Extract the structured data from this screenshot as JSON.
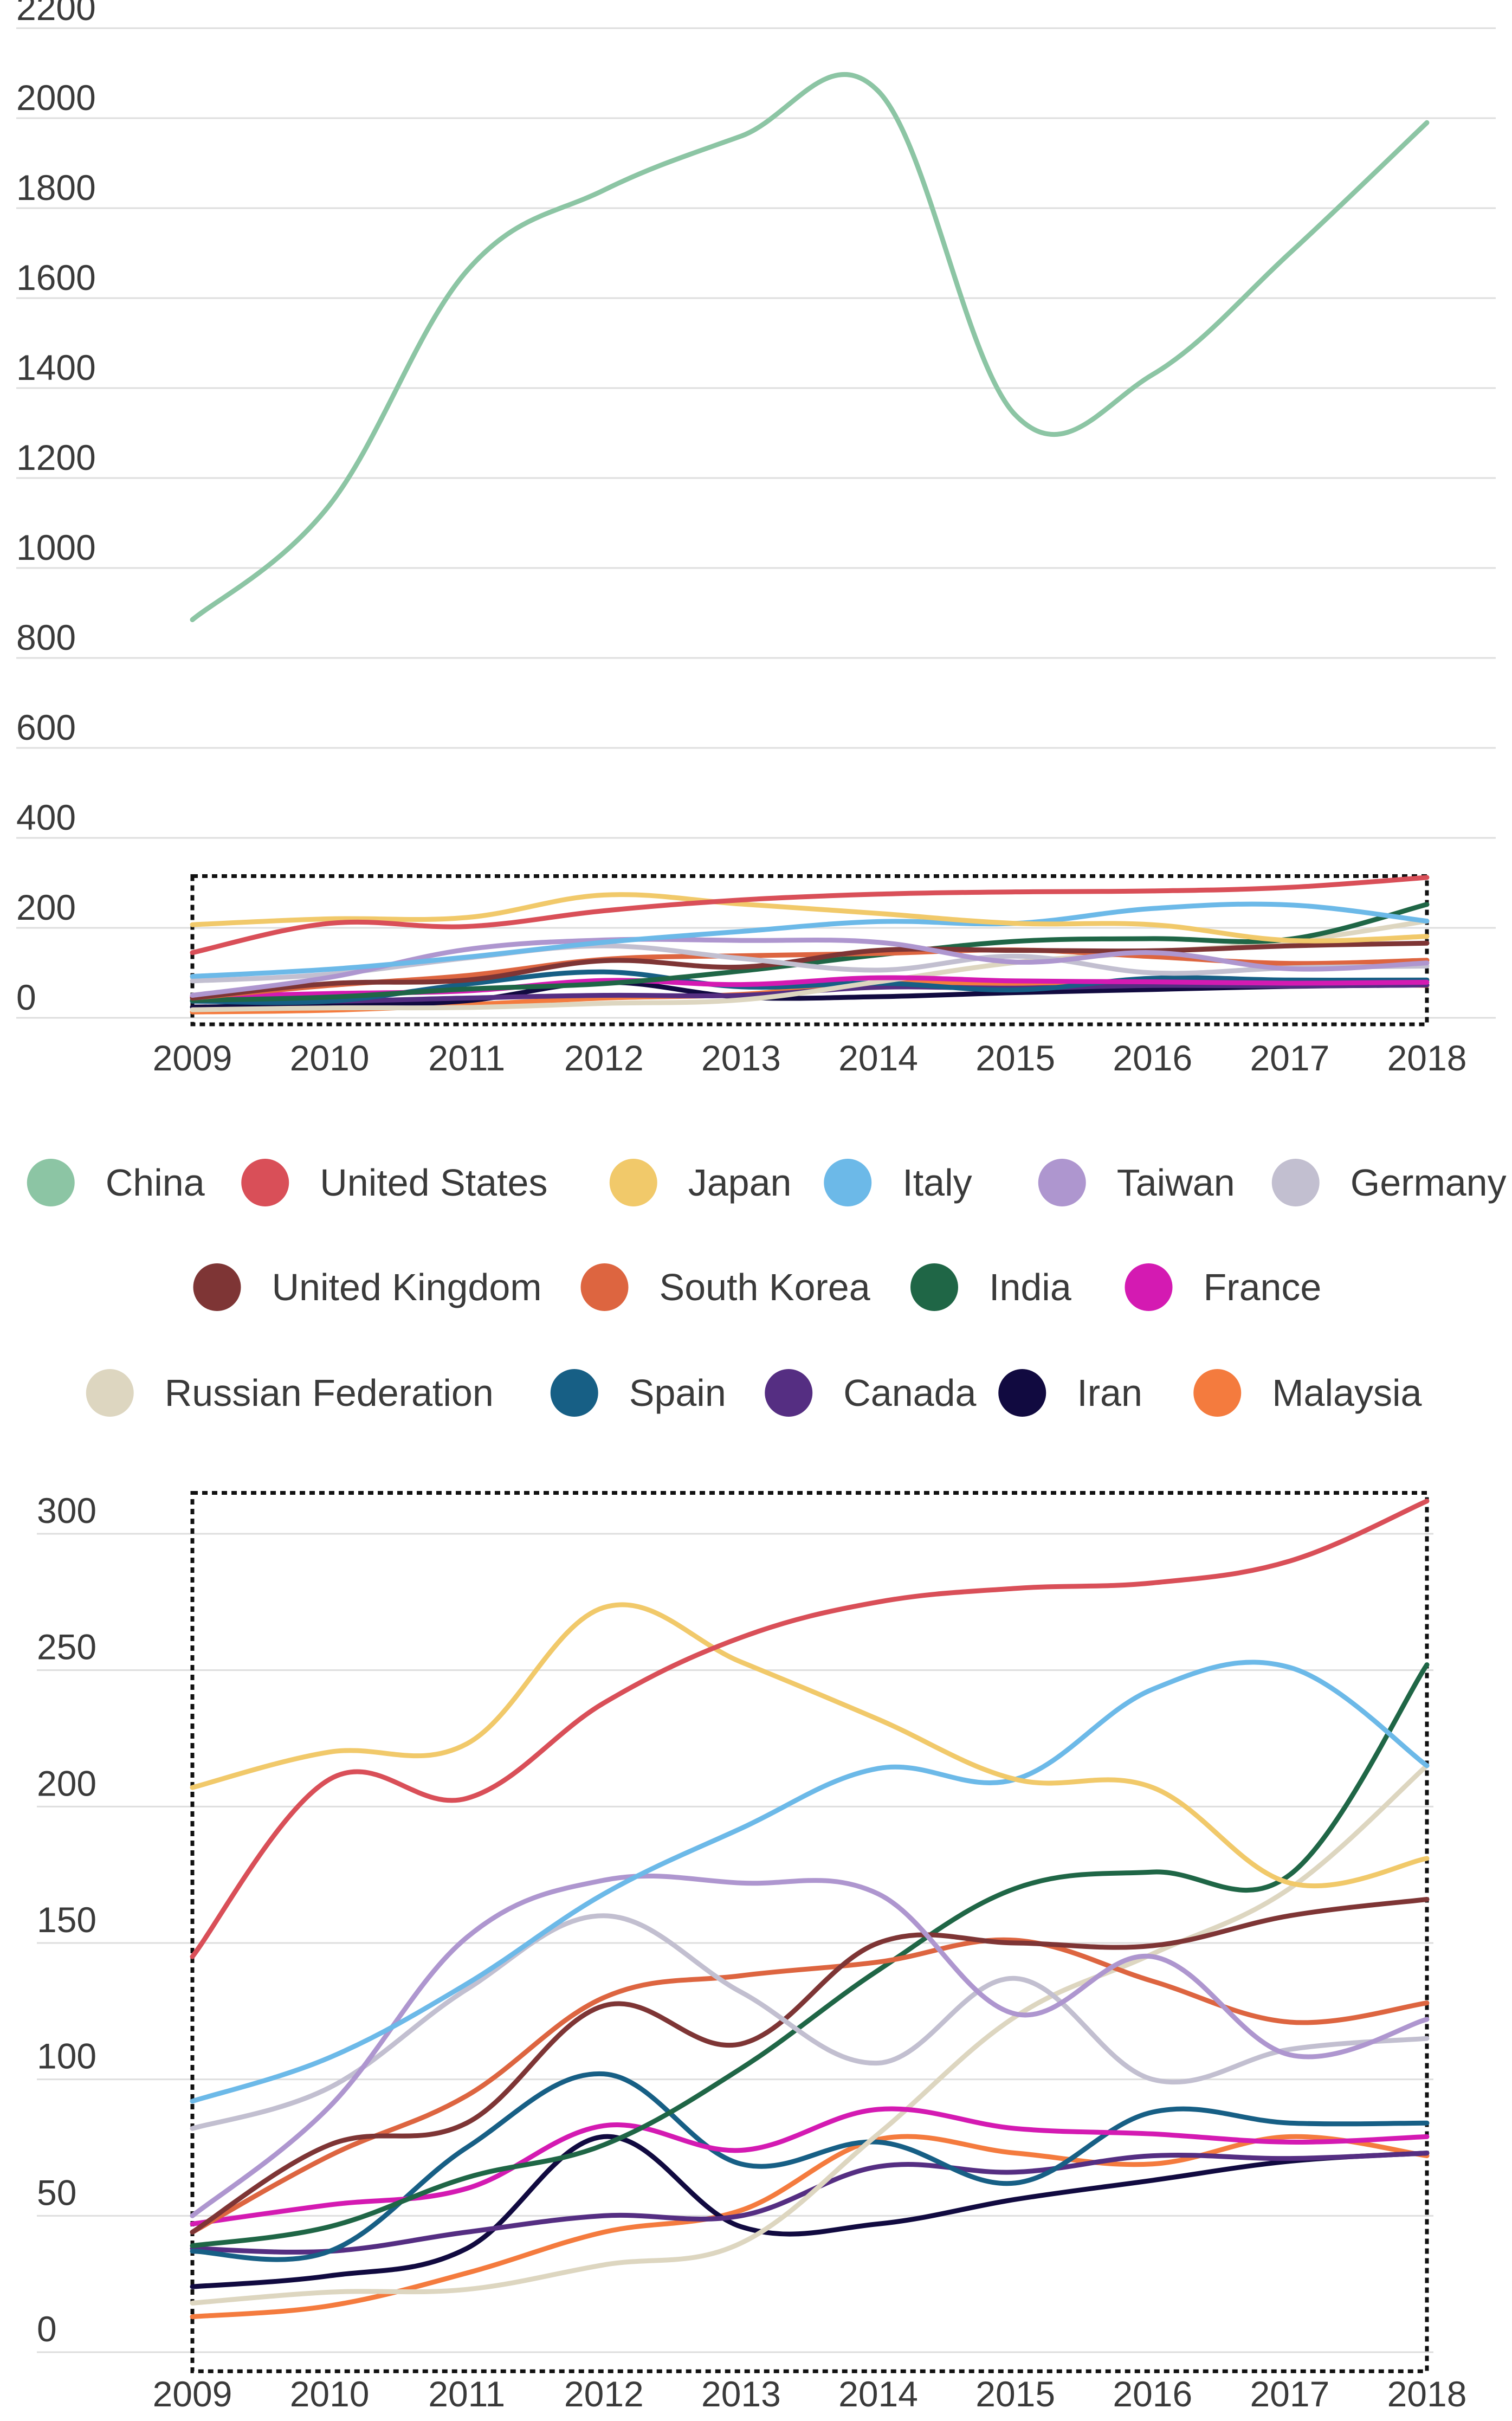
{
  "chart_data": [
    {
      "type": "line",
      "title": "",
      "xlabel": "",
      "ylabel": "",
      "x": [
        "2009",
        "2010",
        "2011",
        "2012",
        "2013",
        "2014",
        "2015",
        "2016",
        "2017",
        "2018"
      ],
      "ylim": [
        0,
        2200
      ],
      "yticks": [
        0,
        200,
        400,
        600,
        800,
        1000,
        1200,
        1400,
        1600,
        1800,
        2000,
        2200
      ],
      "grid": true,
      "zoom_box_y_range": [
        0,
        315
      ],
      "series": [
        {
          "name": "China",
          "color": "#8CC5A4",
          "values": [
            885,
            1140,
            1660,
            1840,
            1960,
            2060,
            1340,
            1430,
            1700,
            1990
          ]
        },
        {
          "name": "United States",
          "color": "#D94F58",
          "values": [
            145,
            210,
            203,
            238,
            262,
            275,
            280,
            282,
            290,
            312
          ]
        },
        {
          "name": "Japan",
          "color": "#F1C96A",
          "values": [
            207,
            220,
            223,
            273,
            253,
            232,
            210,
            207,
            172,
            181
          ]
        },
        {
          "name": "Italy",
          "color": "#6CB9E8",
          "values": [
            92,
            108,
            135,
            168,
            192,
            214,
            210,
            243,
            251,
            215
          ]
        },
        {
          "name": "Taiwan",
          "color": "#AE96CF",
          "values": [
            50,
            90,
            152,
            173,
            172,
            168,
            124,
            145,
            109,
            122
          ]
        },
        {
          "name": "Germany",
          "color": "#C2BFD0",
          "values": [
            82,
            97,
            133,
            160,
            132,
            106,
            137,
            100,
            111,
            115
          ]
        },
        {
          "name": "United Kingdom",
          "color": "#7E3535",
          "values": [
            44,
            76,
            84,
            127,
            113,
            150,
            150,
            149,
            160,
            166
          ]
        },
        {
          "name": "South Korea",
          "color": "#DD6540",
          "values": [
            44,
            72,
            94,
            130,
            138,
            143,
            151,
            136,
            121,
            128
          ]
        },
        {
          "name": "India",
          "color": "#1F6646",
          "values": [
            39,
            46,
            64,
            76,
            104,
            140,
            170,
            176,
            175,
            252
          ]
        },
        {
          "name": "France",
          "color": "#D41AB2",
          "values": [
            47,
            54,
            60,
            83,
            74,
            89,
            82,
            80,
            77,
            79
          ]
        },
        {
          "name": "Russian Federation",
          "color": "#DDD6C0",
          "values": [
            18,
            22,
            23,
            32,
            40,
            80,
            123,
            146,
            170,
            215
          ]
        },
        {
          "name": "Spain",
          "color": "#175F85",
          "values": [
            37,
            37,
            75,
            102,
            69,
            77,
            62,
            88,
            84,
            84
          ]
        },
        {
          "name": "Canada",
          "color": "#552E82",
          "values": [
            38,
            37,
            44,
            50,
            50,
            68,
            66,
            72,
            71,
            73
          ]
        },
        {
          "name": "Iran",
          "color": "#110A40",
          "values": [
            24,
            28,
            38,
            79,
            46,
            47,
            56,
            63,
            70,
            73
          ]
        },
        {
          "name": "Malaysia",
          "color": "#F47B3E",
          "values": [
            13,
            17,
            29,
            44,
            52,
            78,
            73,
            69,
            79,
            72
          ]
        }
      ]
    },
    {
      "type": "line",
      "title": "",
      "xlabel": "",
      "ylabel": "",
      "x": [
        "2009",
        "2010",
        "2011",
        "2012",
        "2013",
        "2014",
        "2015",
        "2016",
        "2017",
        "2018"
      ],
      "ylim": [
        0,
        300
      ],
      "yticks": [
        0,
        50,
        100,
        150,
        200,
        250,
        300
      ],
      "grid": true,
      "series_ref": "same as chart 1 excluding China"
    }
  ],
  "legend": {
    "rows": [
      [
        "China",
        "United States",
        "Japan",
        "Italy",
        "Taiwan",
        "Germany"
      ],
      [
        "United Kingdom",
        "South Korea",
        "India",
        "France"
      ],
      [
        "Russian Federation",
        "Spain",
        "Canada",
        "Iran",
        "Malaysia"
      ]
    ]
  }
}
